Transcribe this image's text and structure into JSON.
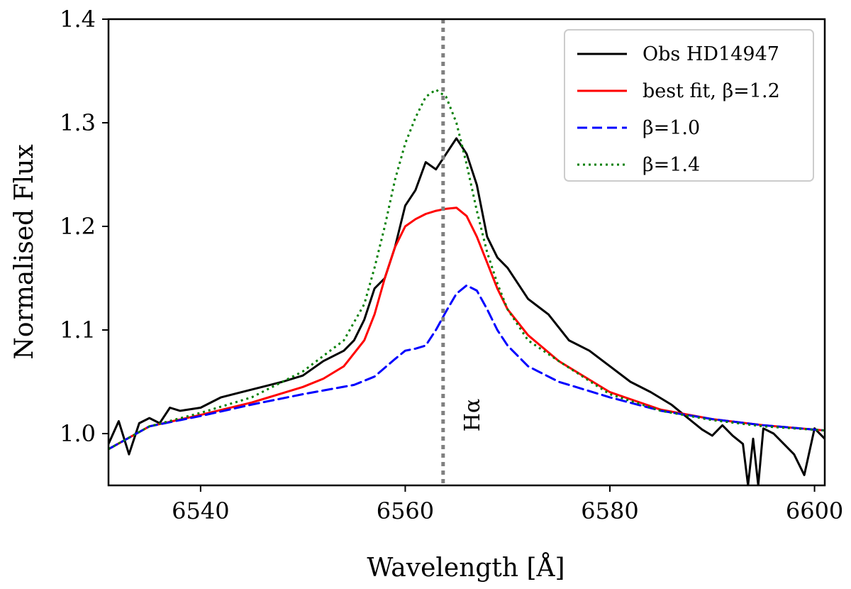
{
  "chart_data": {
    "type": "line",
    "title": "",
    "xlabel": "Wavelength [Å]",
    "ylabel": "Normalised Flux",
    "xlim": [
      6531,
      6601
    ],
    "ylim": [
      0.95,
      1.4
    ],
    "xticks": [
      6540,
      6560,
      6580,
      6600
    ],
    "xtick_labels": [
      "6540",
      "6560",
      "6580",
      "6600"
    ],
    "yticks": [
      1.0,
      1.1,
      1.2,
      1.3,
      1.4
    ],
    "ytick_labels": [
      "1.0",
      "1.1",
      "1.2",
      "1.3",
      "1.4"
    ],
    "grid": false,
    "legend_position": "top-right",
    "reference_line": {
      "x": 6563.7,
      "style": "dotted",
      "color": "#808080",
      "label": "Hα"
    },
    "series": [
      {
        "name": "Obs HD14947",
        "color": "#000000",
        "style": "solid",
        "x": [
          6531,
          6532,
          6533,
          6534,
          6535,
          6536,
          6537,
          6538,
          6540,
          6542,
          6544,
          6546,
          6548,
          6550,
          6552,
          6554,
          6555,
          6556,
          6557,
          6558,
          6559,
          6560,
          6561,
          6562,
          6563,
          6564,
          6565,
          6566,
          6567,
          6568,
          6569,
          6570,
          6572,
          6574,
          6576,
          6578,
          6580,
          6582,
          6584,
          6586,
          6587,
          6588,
          6589,
          6590,
          6591,
          6592,
          6593,
          6593.5,
          6594,
          6594.5,
          6595,
          6596,
          6597,
          6598,
          6599,
          6600,
          6601
        ],
        "y": [
          0.99,
          1.012,
          0.98,
          1.01,
          1.015,
          1.01,
          1.025,
          1.022,
          1.025,
          1.035,
          1.04,
          1.045,
          1.05,
          1.056,
          1.07,
          1.08,
          1.09,
          1.11,
          1.14,
          1.15,
          1.18,
          1.22,
          1.235,
          1.262,
          1.255,
          1.27,
          1.285,
          1.27,
          1.24,
          1.19,
          1.17,
          1.16,
          1.13,
          1.115,
          1.09,
          1.08,
          1.065,
          1.05,
          1.04,
          1.028,
          1.02,
          1.012,
          1.004,
          0.998,
          1.008,
          0.998,
          0.99,
          0.95,
          0.995,
          0.95,
          1.005,
          1.0,
          0.99,
          0.98,
          0.96,
          1.005,
          0.995
        ]
      },
      {
        "name": "best fit, β=1.2",
        "color": "#ff0000",
        "style": "solid",
        "x": [
          6531,
          6535,
          6540,
          6545,
          6550,
          6552,
          6554,
          6556,
          6557,
          6558,
          6559,
          6560,
          6561,
          6562,
          6563,
          6564,
          6565,
          6566,
          6567,
          6568,
          6569,
          6570,
          6572,
          6575,
          6580,
          6585,
          6590,
          6595,
          6601
        ],
        "y": [
          0.985,
          1.007,
          1.018,
          1.03,
          1.045,
          1.053,
          1.065,
          1.09,
          1.115,
          1.15,
          1.18,
          1.2,
          1.207,
          1.212,
          1.215,
          1.217,
          1.218,
          1.21,
          1.19,
          1.165,
          1.14,
          1.12,
          1.095,
          1.07,
          1.04,
          1.023,
          1.014,
          1.008,
          1.003
        ]
      },
      {
        "name": "β=1.0",
        "color": "#0000ff",
        "style": "dashed",
        "x": [
          6531,
          6535,
          6540,
          6545,
          6550,
          6555,
          6557,
          6559,
          6560,
          6561,
          6562,
          6563,
          6564,
          6565,
          6566,
          6567,
          6568,
          6569,
          6570,
          6572,
          6575,
          6580,
          6585,
          6590,
          6595,
          6601
        ],
        "y": [
          0.985,
          1.007,
          1.017,
          1.028,
          1.038,
          1.047,
          1.055,
          1.072,
          1.08,
          1.082,
          1.085,
          1.1,
          1.118,
          1.135,
          1.143,
          1.138,
          1.12,
          1.1,
          1.085,
          1.065,
          1.05,
          1.035,
          1.022,
          1.014,
          1.008,
          1.003
        ]
      },
      {
        "name": "β=1.4",
        "color": "#007f00",
        "style": "dotted",
        "x": [
          6531,
          6535,
          6540,
          6545,
          6550,
          6552,
          6554,
          6556,
          6557,
          6558,
          6559,
          6560,
          6561,
          6562,
          6563,
          6564,
          6565,
          6566,
          6567,
          6568,
          6569,
          6570,
          6572,
          6575,
          6580,
          6585,
          6590,
          6595,
          6601
        ],
        "y": [
          0.985,
          1.007,
          1.02,
          1.035,
          1.06,
          1.075,
          1.09,
          1.125,
          1.16,
          1.2,
          1.245,
          1.28,
          1.305,
          1.325,
          1.332,
          1.325,
          1.3,
          1.26,
          1.215,
          1.175,
          1.145,
          1.12,
          1.09,
          1.07,
          1.038,
          1.022,
          1.013,
          1.007,
          1.003
        ]
      }
    ]
  }
}
